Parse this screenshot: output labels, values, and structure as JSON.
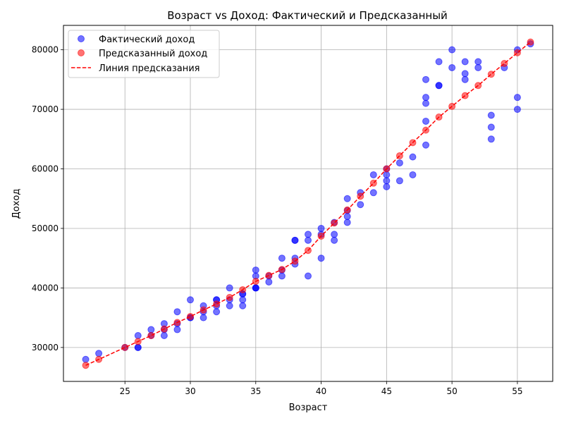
{
  "chart_data": {
    "type": "scatter",
    "title": "Возраст vs Доход: Фактический и Предсказанный",
    "xlabel": "Возраст",
    "ylabel": "Доход",
    "xlim": [
      20.3,
      57.7
    ],
    "ylim": [
      24300,
      84100
    ],
    "xticks": [
      25,
      30,
      35,
      40,
      45,
      50,
      55
    ],
    "yticks": [
      30000,
      40000,
      50000,
      60000,
      70000,
      80000
    ],
    "grid": true,
    "legend_position": "top-left",
    "series": [
      {
        "name": "Фактический доход",
        "kind": "scatter",
        "color": "#0000ff",
        "opacity": 0.55,
        "points": [
          [
            22,
            28000
          ],
          [
            23,
            29000
          ],
          [
            25,
            30000
          ],
          [
            26,
            30000
          ],
          [
            26,
            30000
          ],
          [
            26,
            32000
          ],
          [
            27,
            32000
          ],
          [
            27,
            33000
          ],
          [
            28,
            32000
          ],
          [
            28,
            33000
          ],
          [
            28,
            34000
          ],
          [
            29,
            33000
          ],
          [
            29,
            34000
          ],
          [
            29,
            36000
          ],
          [
            30,
            35000
          ],
          [
            30,
            35000
          ],
          [
            30,
            38000
          ],
          [
            31,
            35000
          ],
          [
            31,
            36000
          ],
          [
            31,
            37000
          ],
          [
            32,
            36000
          ],
          [
            32,
            37000
          ],
          [
            32,
            38000
          ],
          [
            32,
            38000
          ],
          [
            33,
            37000
          ],
          [
            33,
            38000
          ],
          [
            33,
            40000
          ],
          [
            34,
            37000
          ],
          [
            34,
            38000
          ],
          [
            34,
            39000
          ],
          [
            34,
            39000
          ],
          [
            35,
            40000
          ],
          [
            35,
            40000
          ],
          [
            35,
            40000
          ],
          [
            35,
            42000
          ],
          [
            35,
            43000
          ],
          [
            36,
            41000
          ],
          [
            36,
            42000
          ],
          [
            37,
            42000
          ],
          [
            37,
            43000
          ],
          [
            37,
            45000
          ],
          [
            38,
            44000
          ],
          [
            38,
            45000
          ],
          [
            38,
            48000
          ],
          [
            38,
            48000
          ],
          [
            39,
            42000
          ],
          [
            39,
            48000
          ],
          [
            39,
            49000
          ],
          [
            40,
            45000
          ],
          [
            40,
            49000
          ],
          [
            40,
            50000
          ],
          [
            41,
            48000
          ],
          [
            41,
            49000
          ],
          [
            41,
            51000
          ],
          [
            42,
            51000
          ],
          [
            42,
            52000
          ],
          [
            42,
            53000
          ],
          [
            42,
            55000
          ],
          [
            43,
            54000
          ],
          [
            43,
            56000
          ],
          [
            44,
            56000
          ],
          [
            44,
            59000
          ],
          [
            45,
            57000
          ],
          [
            45,
            58000
          ],
          [
            45,
            59000
          ],
          [
            45,
            60000
          ],
          [
            46,
            58000
          ],
          [
            46,
            61000
          ],
          [
            47,
            59000
          ],
          [
            47,
            62000
          ],
          [
            48,
            64000
          ],
          [
            48,
            68000
          ],
          [
            48,
            71000
          ],
          [
            48,
            72000
          ],
          [
            48,
            75000
          ],
          [
            49,
            74000
          ],
          [
            49,
            74000
          ],
          [
            49,
            78000
          ],
          [
            50,
            77000
          ],
          [
            50,
            80000
          ],
          [
            51,
            75000
          ],
          [
            51,
            76000
          ],
          [
            51,
            78000
          ],
          [
            52,
            77000
          ],
          [
            52,
            78000
          ],
          [
            53,
            65000
          ],
          [
            53,
            67000
          ],
          [
            53,
            69000
          ],
          [
            54,
            77000
          ],
          [
            55,
            70000
          ],
          [
            55,
            72000
          ],
          [
            55,
            80000
          ],
          [
            56,
            81000
          ]
        ]
      },
      {
        "name": "Предсказанный доход",
        "kind": "scatter",
        "color": "#ff0000",
        "opacity": 0.55,
        "points": [
          [
            22,
            27000
          ],
          [
            23,
            28000
          ],
          [
            25,
            30000
          ],
          [
            26,
            31000
          ],
          [
            27,
            32000
          ],
          [
            28,
            33100
          ],
          [
            29,
            34200
          ],
          [
            30,
            35200
          ],
          [
            31,
            36300
          ],
          [
            32,
            37300
          ],
          [
            33,
            38400
          ],
          [
            34,
            39700
          ],
          [
            35,
            41100
          ],
          [
            36,
            42100
          ],
          [
            37,
            43100
          ],
          [
            38,
            44500
          ],
          [
            39,
            46300
          ],
          [
            40,
            48700
          ],
          [
            41,
            50900
          ],
          [
            42,
            53100
          ],
          [
            43,
            55400
          ],
          [
            44,
            57600
          ],
          [
            45,
            60000
          ],
          [
            46,
            62200
          ],
          [
            47,
            64400
          ],
          [
            48,
            66500
          ],
          [
            49,
            68700
          ],
          [
            50,
            70500
          ],
          [
            51,
            72300
          ],
          [
            52,
            74000
          ],
          [
            53,
            75900
          ],
          [
            54,
            77700
          ],
          [
            55,
            79500
          ],
          [
            56,
            81300
          ]
        ]
      },
      {
        "name": "Линия предсказания",
        "kind": "line",
        "color": "#ff0000",
        "dash": "dashed",
        "points": [
          [
            22,
            27000
          ],
          [
            23,
            28000
          ],
          [
            25,
            30000
          ],
          [
            26,
            31000
          ],
          [
            27,
            32000
          ],
          [
            28,
            33100
          ],
          [
            29,
            34200
          ],
          [
            30,
            35200
          ],
          [
            31,
            36300
          ],
          [
            32,
            37300
          ],
          [
            33,
            38400
          ],
          [
            34,
            39700
          ],
          [
            35,
            41100
          ],
          [
            36,
            42100
          ],
          [
            37,
            43100
          ],
          [
            38,
            44500
          ],
          [
            39,
            46300
          ],
          [
            40,
            48700
          ],
          [
            41,
            50900
          ],
          [
            42,
            53100
          ],
          [
            43,
            55400
          ],
          [
            44,
            57600
          ],
          [
            45,
            60000
          ],
          [
            46,
            62200
          ],
          [
            47,
            64400
          ],
          [
            48,
            66500
          ],
          [
            49,
            68700
          ],
          [
            50,
            70500
          ],
          [
            51,
            72300
          ],
          [
            52,
            74000
          ],
          [
            53,
            75900
          ],
          [
            54,
            77700
          ],
          [
            55,
            79500
          ],
          [
            56,
            81300
          ]
        ]
      }
    ]
  }
}
